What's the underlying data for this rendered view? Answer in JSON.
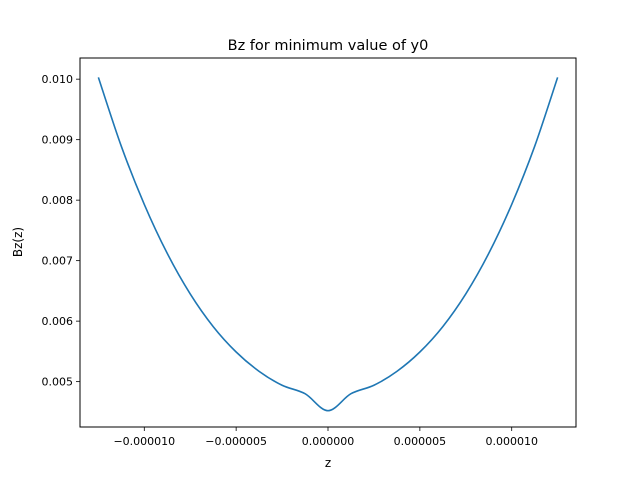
{
  "chart_data": {
    "type": "line",
    "title": "Bz for minimum value of y0",
    "xlabel": "z",
    "ylabel": "Bz(z)",
    "xlim": [
      -1.35e-05,
      1.35e-05
    ],
    "ylim": [
      0.00425,
      0.01035
    ],
    "x_ticks": [
      -1e-05,
      -5e-06,
      0.0,
      5e-06,
      1e-05
    ],
    "x_tick_labels": [
      "−0.000010",
      "−0.000005",
      "0.000000",
      "0.000005",
      "0.000010"
    ],
    "y_ticks": [
      0.005,
      0.006,
      0.007,
      0.008,
      0.009,
      0.01
    ],
    "y_tick_labels": [
      "0.005",
      "0.006",
      "0.007",
      "0.008",
      "0.009",
      "0.010"
    ],
    "grid": false,
    "legend": "none",
    "line_color": "#1f77b4",
    "series": [
      {
        "x": [
          -1.25e-05,
          -1.125e-05,
          -1e-05,
          -8.75e-06,
          -7.5e-06,
          -6.25e-06,
          -5e-06,
          -3.75e-06,
          -2.5e-06,
          -1.25e-06,
          0.0,
          1.25e-06,
          2.5e-06,
          3.75e-06,
          5e-06,
          6.25e-06,
          7.5e-06,
          8.75e-06,
          1e-05,
          1.125e-05,
          1.25e-05
        ],
        "y": [
          0.01003,
          0.00889,
          0.00793,
          0.00712,
          0.00645,
          0.00591,
          0.00549,
          0.00517,
          0.00494,
          0.0048,
          0.00452,
          0.0048,
          0.00494,
          0.00517,
          0.00549,
          0.00591,
          0.00645,
          0.00712,
          0.00793,
          0.00889,
          0.01003
        ]
      }
    ]
  }
}
